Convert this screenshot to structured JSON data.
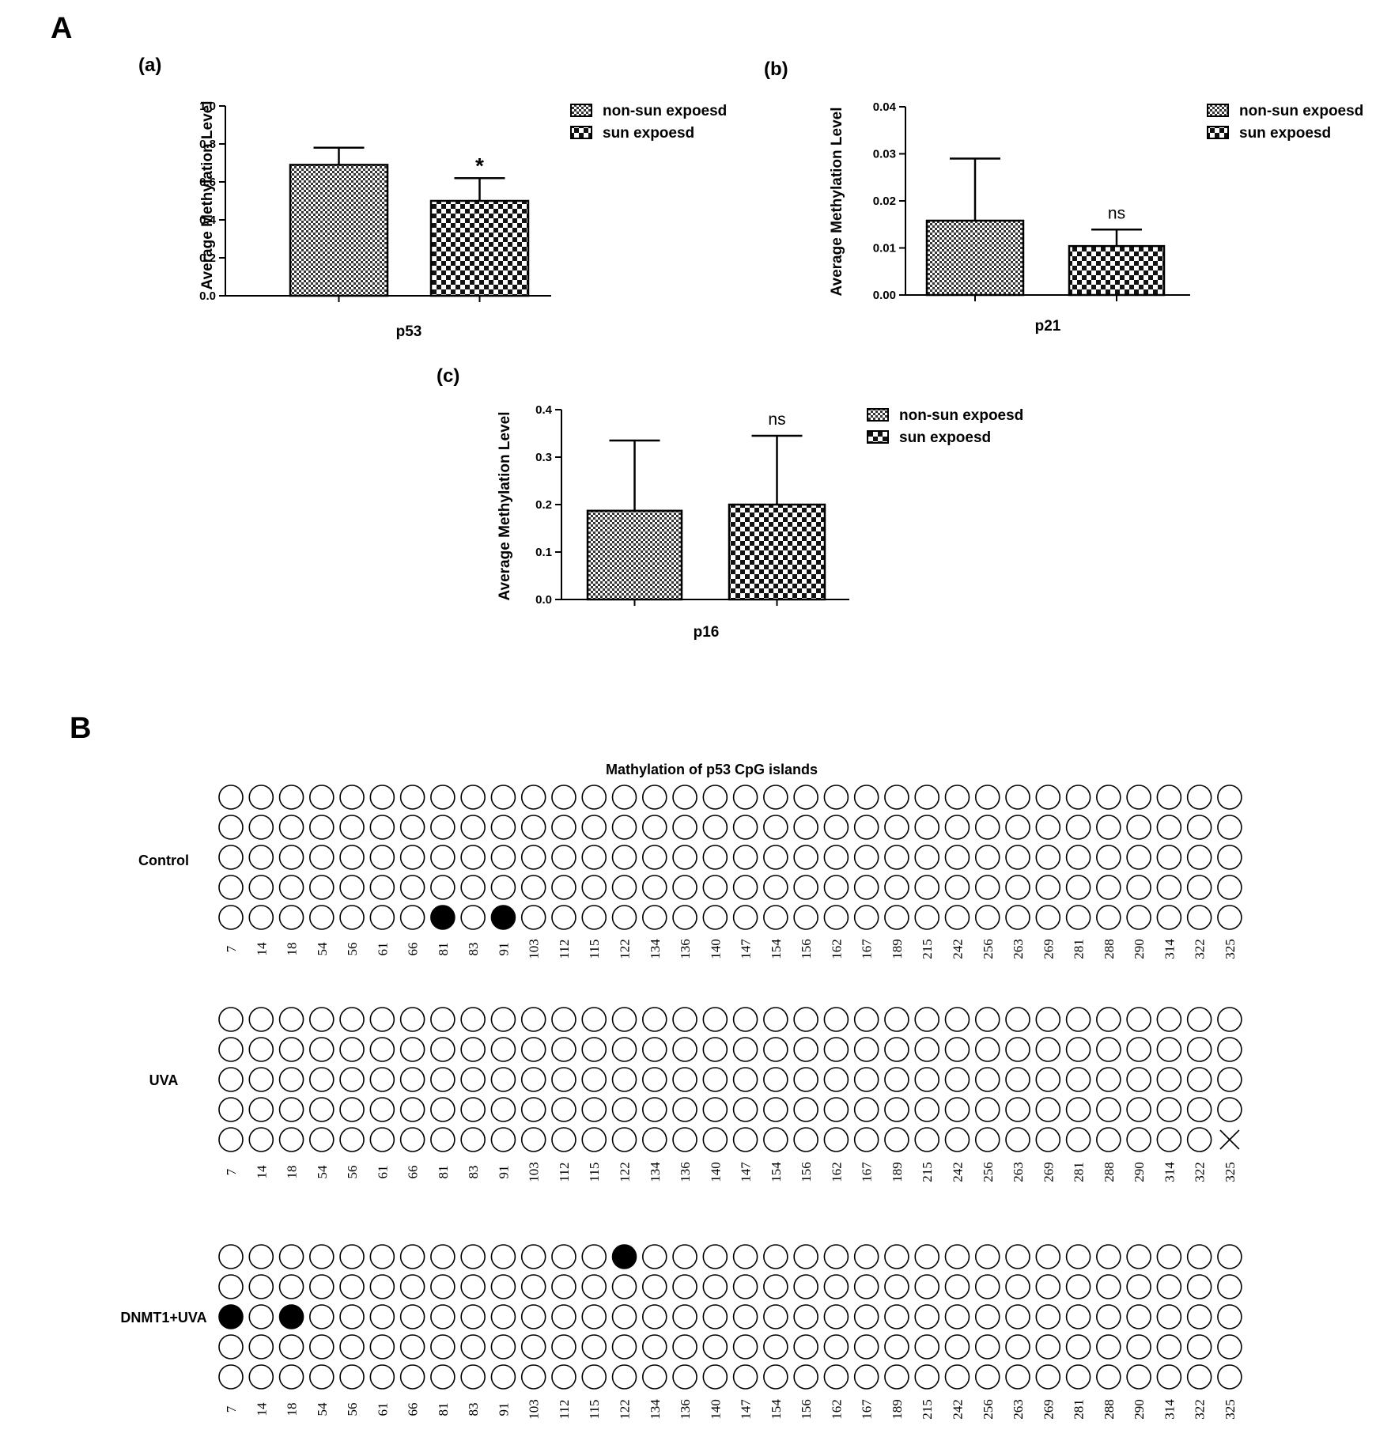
{
  "panels": {
    "A": "A",
    "B": "B"
  },
  "chart_data": [
    {
      "id": "a",
      "type": "bar",
      "panel_label": "(a)",
      "xlabel": "p53",
      "ylabel": "Average Methylation Level",
      "ylim": [
        0,
        1.0
      ],
      "yticks": [
        "0.0",
        "0.2",
        "0.4",
        "0.6",
        "0.8",
        "1.0"
      ],
      "series": [
        {
          "name": "non-sun expoesd",
          "value": 0.69,
          "error": 0.09,
          "pattern": "fine"
        },
        {
          "name": "sun expoesd",
          "value": 0.5,
          "error": 0.12,
          "pattern": "checker",
          "annotation": "*"
        }
      ],
      "legend_placement": "right"
    },
    {
      "id": "b",
      "type": "bar",
      "panel_label": "(b)",
      "xlabel": "p21",
      "ylabel": "Average Methylation Level",
      "ylim": [
        0,
        0.04
      ],
      "yticks": [
        "0.00",
        "0.01",
        "0.02",
        "0.03",
        "0.04"
      ],
      "series": [
        {
          "name": "non-sun expoesd",
          "value": 0.0158,
          "error": 0.0132,
          "pattern": "fine"
        },
        {
          "name": "sun expoesd",
          "value": 0.0104,
          "error": 0.0035,
          "pattern": "checker",
          "annotation": "ns"
        }
      ],
      "legend_placement": "right"
    },
    {
      "id": "c",
      "type": "bar",
      "panel_label": "(c)",
      "xlabel": "p16",
      "ylabel": "Average Methylation Level",
      "ylim": [
        0,
        0.4
      ],
      "yticks": [
        "0.0",
        "0.1",
        "0.2",
        "0.3",
        "0.4"
      ],
      "series": [
        {
          "name": "non-sun expoesd",
          "value": 0.187,
          "error": 0.148,
          "pattern": "fine"
        },
        {
          "name": "sun expoesd",
          "value": 0.2,
          "error": 0.145,
          "pattern": "checker",
          "annotation": "ns"
        }
      ],
      "legend_placement": "right"
    },
    {
      "id": "B",
      "type": "heatmap",
      "title": "Mathylation of p53 CpG islands",
      "positions": [
        "7",
        "14",
        "18",
        "54",
        "56",
        "61",
        "66",
        "81",
        "83",
        "91",
        "103",
        "112",
        "115",
        "122",
        "134",
        "136",
        "140",
        "147",
        "154",
        "156",
        "162",
        "167",
        "189",
        "215",
        "242",
        "256",
        "263",
        "269",
        "281",
        "288",
        "290",
        "314",
        "322",
        "325"
      ],
      "legend_note_filled": "methylated",
      "groups": [
        {
          "name": "Control",
          "clones": 5,
          "methylated": [
            [
              4,
              "81"
            ],
            [
              4,
              "91"
            ]
          ],
          "missing": []
        },
        {
          "name": "UVA",
          "clones": 5,
          "methylated": [],
          "missing": [
            [
              4,
              "325"
            ]
          ]
        },
        {
          "name": "DNMT1+UVA",
          "clones": 5,
          "methylated": [
            [
              0,
              "122"
            ],
            [
              2,
              "7"
            ],
            [
              2,
              "18"
            ]
          ],
          "missing": []
        }
      ]
    }
  ]
}
